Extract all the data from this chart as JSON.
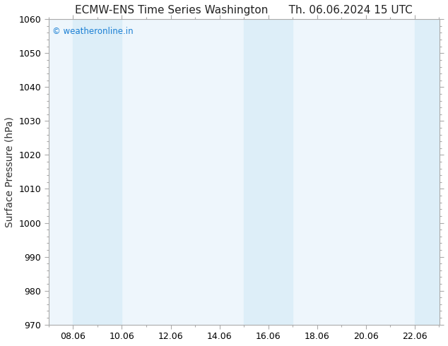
{
  "title_left": "ECMW-ENS Time Series Washington",
  "title_right": "Th. 06.06.2024 15 UTC",
  "ylabel": "Surface Pressure (hPa)",
  "ylim": [
    970,
    1060
  ],
  "yticks": [
    970,
    980,
    990,
    1000,
    1010,
    1020,
    1030,
    1040,
    1050,
    1060
  ],
  "xtick_labels": [
    "08.06",
    "10.06",
    "12.06",
    "14.06",
    "16.06",
    "18.06",
    "20.06",
    "22.06"
  ],
  "xtick_positions": [
    8,
    10,
    12,
    14,
    16,
    18,
    20,
    22
  ],
  "xlim": [
    7,
    23
  ],
  "shaded_bands": [
    {
      "x_start": 8.0,
      "x_end": 10.0
    },
    {
      "x_start": 15.0,
      "x_end": 17.0
    },
    {
      "x_start": 22.0,
      "x_end": 23.0
    }
  ],
  "band_color": "#ddeef8",
  "plot_bg_color": "#eef6fc",
  "watermark": "© weatheronline.in",
  "watermark_color": "#1a7fd4",
  "fig_bg_color": "#ffffff",
  "title_fontsize": 11,
  "label_fontsize": 10,
  "tick_fontsize": 9,
  "spine_color": "#aaaaaa"
}
